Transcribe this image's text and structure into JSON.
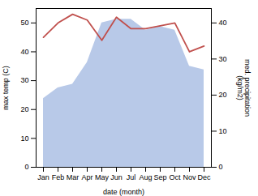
{
  "chart_data": {
    "type": "line",
    "categories": [
      "Jan",
      "Feb",
      "Mar",
      "Apr",
      "May",
      "Jun",
      "Jul",
      "Aug",
      "Sep",
      "Oct",
      "Nov",
      "Dec"
    ],
    "xlabel": "date (month)",
    "ylabel": "max temp (C)",
    "y2label": "med. precipitation\n(kg/m2)",
    "ylim": [
      0,
      55
    ],
    "yticks": [
      0,
      10,
      20,
      30,
      40,
      50
    ],
    "y2lim": [
      0,
      44
    ],
    "y2ticks": [
      0,
      10,
      20,
      30,
      40
    ],
    "series": [
      {
        "type": "line",
        "color": "#c0504d",
        "values": [
          45,
          50,
          53,
          51,
          44,
          52,
          48,
          48,
          49,
          50,
          40,
          42
        ]
      },
      {
        "type": "area",
        "axis": "y2",
        "color": "#b8c9e8",
        "values": [
          19,
          22,
          23,
          29,
          40,
          41,
          41,
          38,
          39,
          38,
          28,
          27
        ]
      }
    ]
  }
}
